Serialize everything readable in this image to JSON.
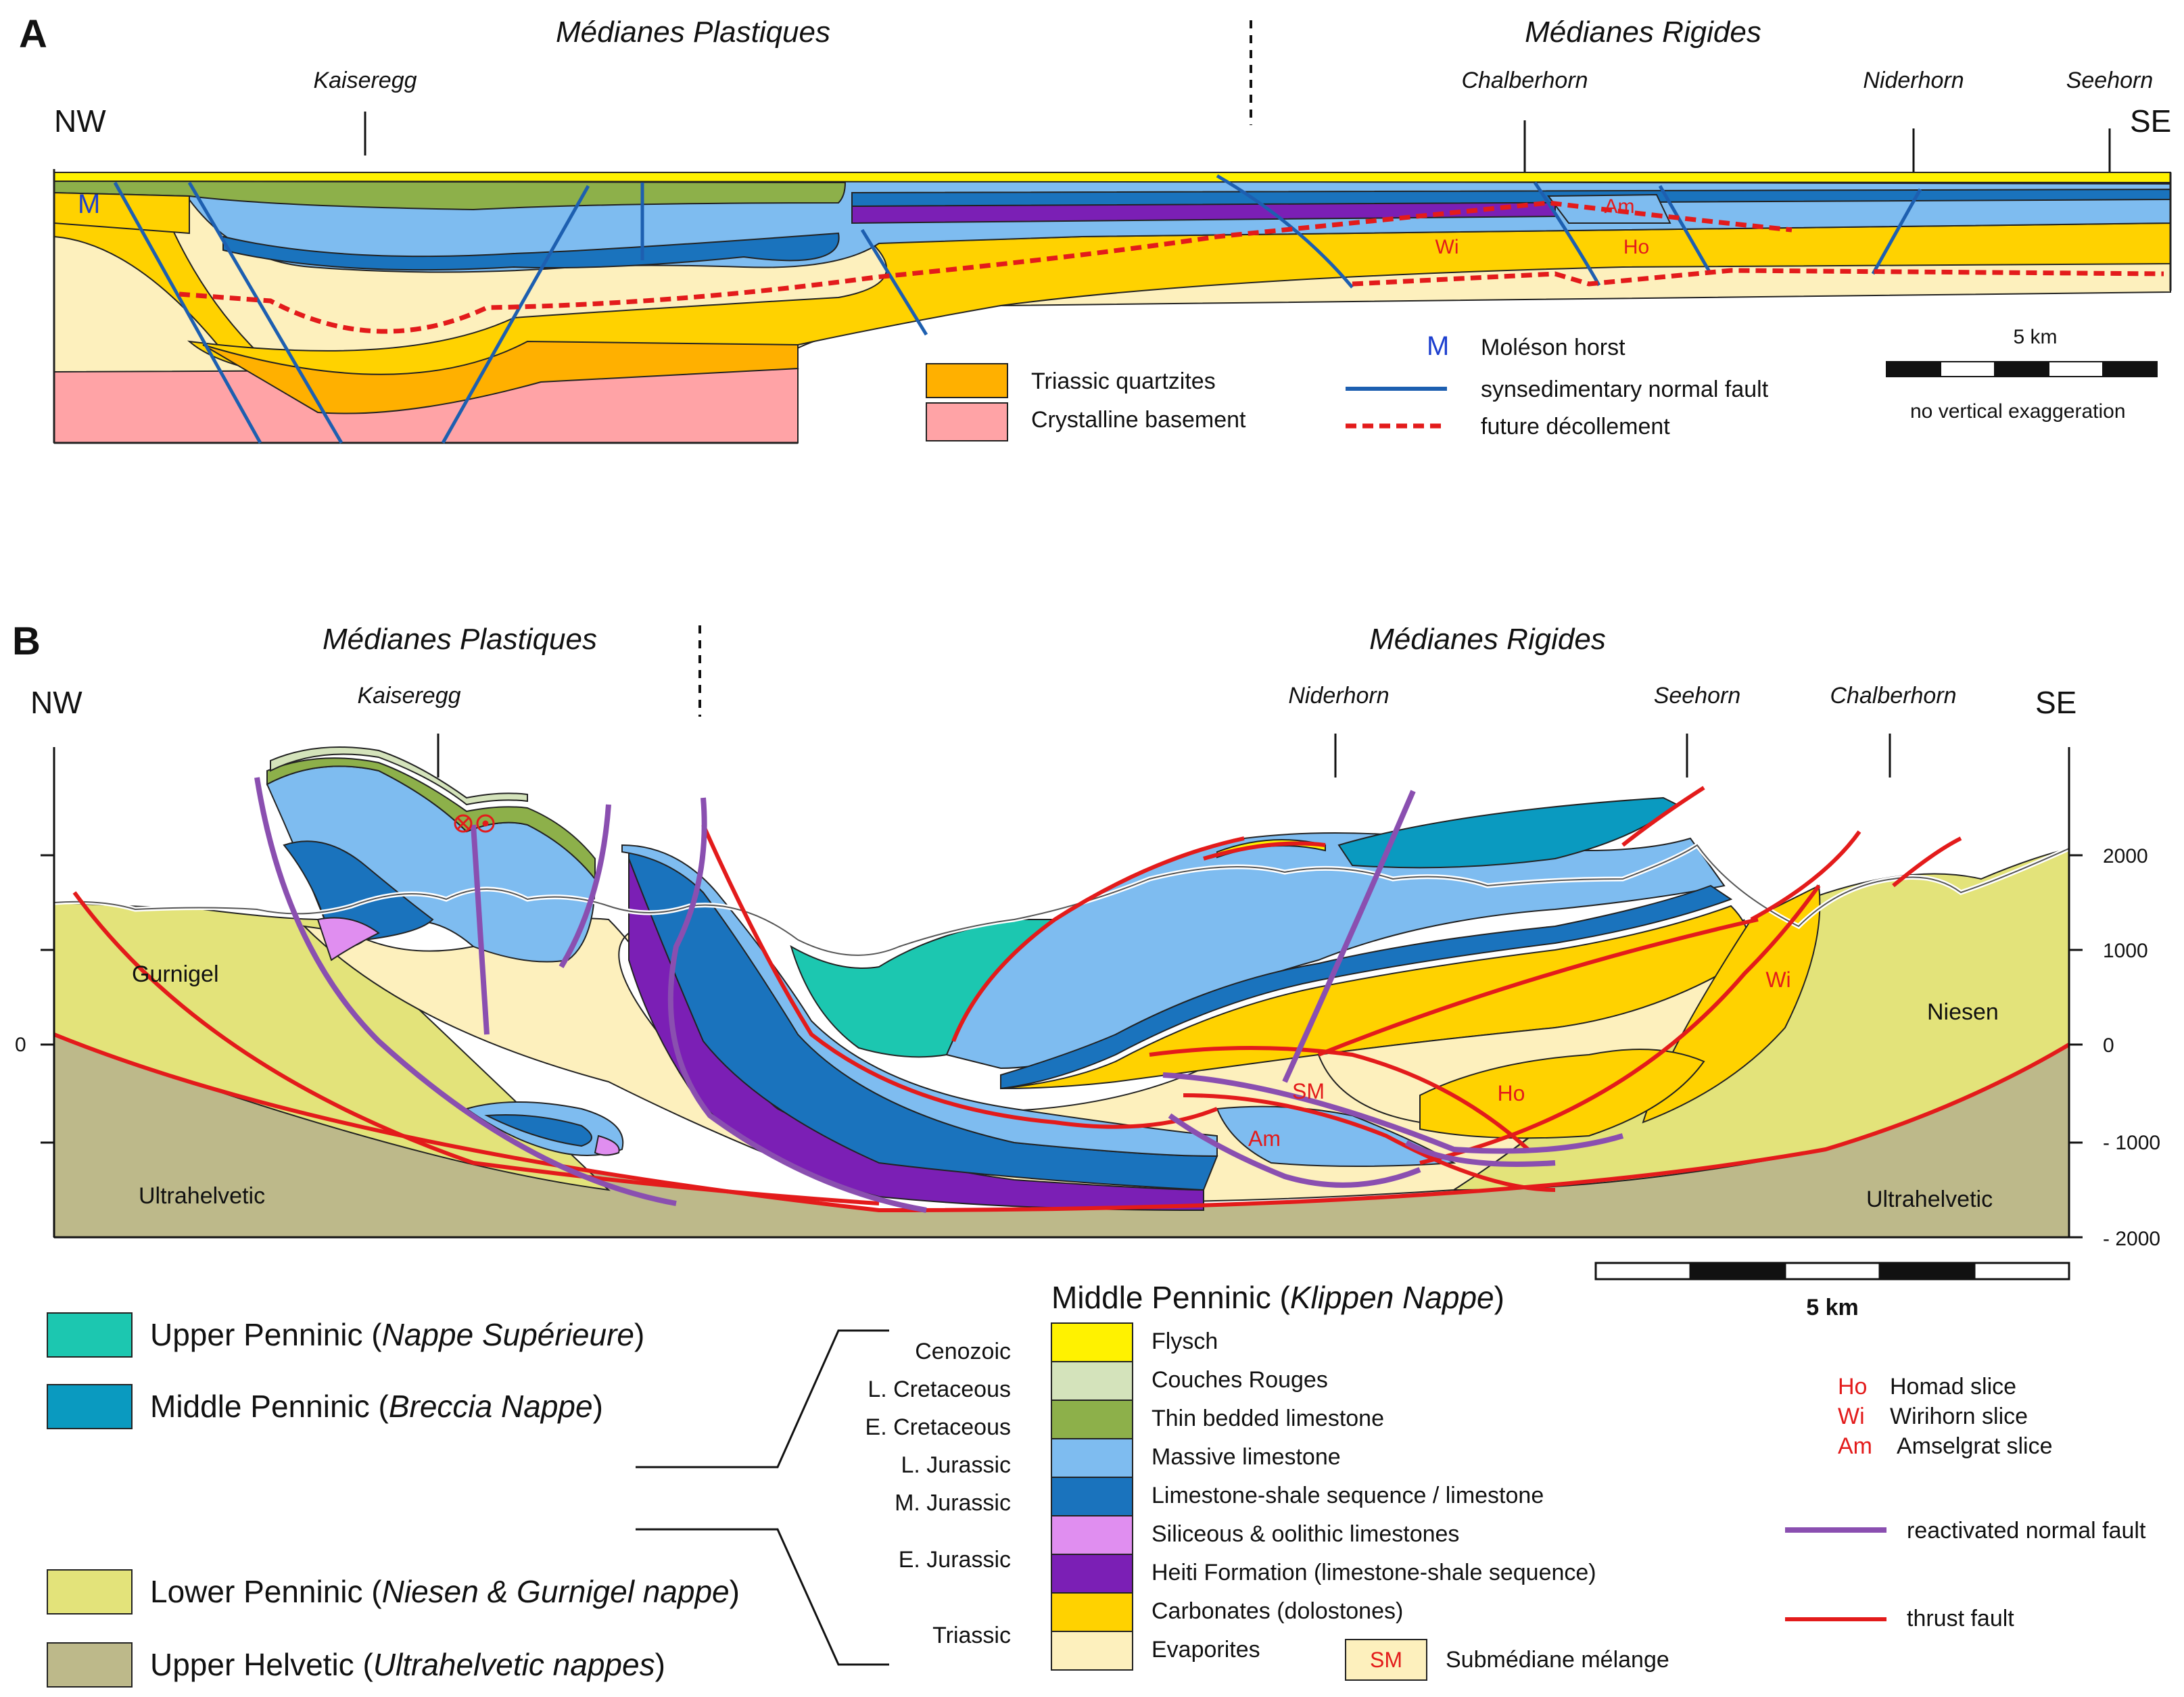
{
  "panel_a": {
    "label": "A",
    "zone_left": "Médianes Plastiques",
    "zone_right": "Médianes Rigides",
    "dir_nw": "NW",
    "dir_se": "SE",
    "localities": [
      "Kaiseregg",
      "Chalberhorn",
      "Niderhorn",
      "Seehorn"
    ],
    "horst_letter": "M",
    "slices": {
      "am": "Am",
      "wi": "Wi",
      "ho": "Ho"
    },
    "legend": {
      "triassic_quartzites": "Triassic quartzites",
      "crystalline_basement": "Crystalline basement",
      "horst_symbol": "M",
      "horst_label": "Moléson horst",
      "normal_fault": "synsedimentary normal fault",
      "decollement": "future décollement"
    },
    "scale": {
      "label": "5 km",
      "note": "no vertical exaggeration"
    }
  },
  "panel_b": {
    "label": "B",
    "zone_left": "Médianes Plastiques",
    "zone_right": "Médianes Rigides",
    "dir_nw": "NW",
    "dir_se": "SE",
    "localities": [
      "Kaiseregg",
      "Niderhorn",
      "Seehorn",
      "Chalberhorn"
    ],
    "units": {
      "gurnigel": "Gurnigel",
      "niesen": "Niesen",
      "ultra_left": "Ultrahelvetic",
      "ultra_right": "Ultrahelvetic"
    },
    "slices": {
      "sm": "SM",
      "am": "Am",
      "wi": "Wi",
      "ho": "Ho"
    },
    "axis_right": [
      "2000",
      "1000",
      "0",
      "- 1000",
      "- 2000"
    ],
    "axis_left_zero": "0",
    "scale": {
      "label": "5 km"
    }
  },
  "legend_nappes": [
    {
      "name": "Upper Penninic (",
      "italic": "Nappe Supérieure",
      "close": ")",
      "color": "#1cc7b0"
    },
    {
      "name": "Middle Penninic (",
      "italic": "Breccia Nappe",
      "close": ")",
      "color": "#0a9ac0"
    },
    {
      "name": "Lower Penninic (",
      "italic": "Niesen & Gurnigel nappe",
      "close": ")",
      "color": "#e3e37a"
    },
    {
      "name": "Upper Helvetic (",
      "italic": "Ultrahelvetic nappes",
      "close": ")",
      "color": "#bdb98a"
    }
  ],
  "klippen": {
    "title": "Middle Penninic (",
    "title_italic": "Klippen Nappe",
    "title_close": ")",
    "ages": [
      "Cenozoic",
      "L. Cretaceous",
      "E. Cretaceous",
      "L. Jurassic",
      "M. Jurassic",
      "E. Jurassic",
      "Triassic"
    ],
    "units": [
      {
        "label": "Flysch",
        "color": "#fff200"
      },
      {
        "label": "Couches Rouges",
        "color": "#d4e3bb"
      },
      {
        "label": "Thin bedded limestone",
        "color": "#8db04a"
      },
      {
        "label": "Massive limestone",
        "color": "#7ebcf0"
      },
      {
        "label": "Limestone-shale sequence / limestone",
        "color": "#1a73bd"
      },
      {
        "label": "Siliceous & oolithic limestones",
        "color": "#e08ef0"
      },
      {
        "label": "Heiti Formation (limestone-shale sequence)",
        "color": "#7b1fb5"
      },
      {
        "label": "Carbonates (dolostones)",
        "color": "#ffd200"
      },
      {
        "label": "Evaporites",
        "color": "#fdf0bd"
      }
    ],
    "sm_symbol": "SM",
    "sm_label": "Submédiane mélange"
  },
  "slice_legend": [
    {
      "code": "Ho",
      "label": "Homad slice"
    },
    {
      "code": "Wi",
      "label": "Wirihorn slice"
    },
    {
      "code": "Am",
      "label": "Amselgrat slice"
    }
  ],
  "line_legend": {
    "reactivated": "reactivated normal fault",
    "thrust": "thrust fault",
    "reactivated_color": "#8a4fb0",
    "thrust_color": "#e31b1b"
  }
}
